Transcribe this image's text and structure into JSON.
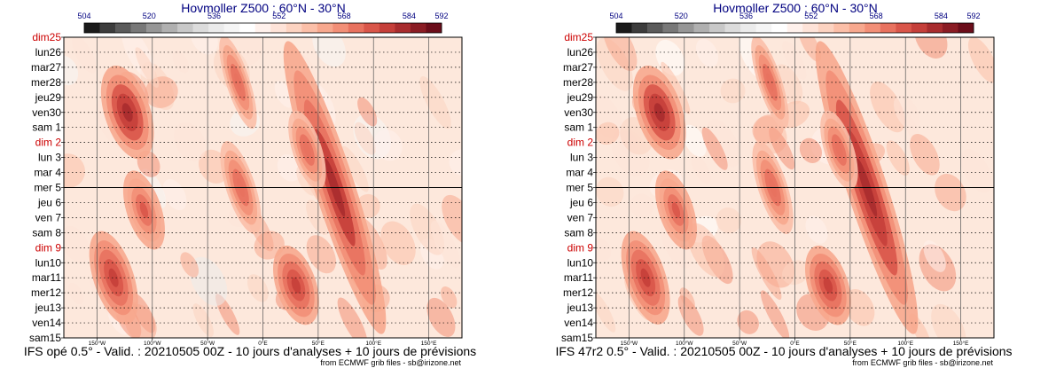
{
  "chart_data": [
    {
      "type": "heatmap",
      "title": "Hovmoller Z500 : 60°N - 30°N",
      "colorbar": {
        "tick_labels": [
          "504",
          "520",
          "536",
          "552",
          "568",
          "584",
          "592"
        ],
        "tick_values": [
          504,
          520,
          536,
          552,
          568,
          584,
          592
        ],
        "range": [
          504,
          592
        ],
        "colors": [
          "#1a1a1a",
          "#3c3c3c",
          "#5a5a5a",
          "#787878",
          "#969696",
          "#b0b0b0",
          "#c8c8c8",
          "#dcdcdc",
          "#ebebeb",
          "#f5f5f5",
          "#ffffff",
          "#fff1ec",
          "#fee3d8",
          "#fcd3c1",
          "#fbbfa8",
          "#f7a88e",
          "#f28f77",
          "#e8725f",
          "#d9564a",
          "#c53f3a",
          "#a82c2e",
          "#8a1c24",
          "#6b0d1a"
        ]
      },
      "y_labels": [
        {
          "text": "dim25",
          "sunday": true
        },
        {
          "text": "lun26",
          "sunday": false
        },
        {
          "text": "mar27",
          "sunday": false
        },
        {
          "text": "mer28",
          "sunday": false
        },
        {
          "text": "jeu29",
          "sunday": false
        },
        {
          "text": "ven30",
          "sunday": false
        },
        {
          "text": "sam 1",
          "sunday": false
        },
        {
          "text": "dim 2",
          "sunday": true
        },
        {
          "text": "lun 3",
          "sunday": false
        },
        {
          "text": "mar 4",
          "sunday": false
        },
        {
          "text": "mer 5",
          "sunday": false
        },
        {
          "text": "jeu 6",
          "sunday": false
        },
        {
          "text": "ven 7",
          "sunday": false
        },
        {
          "text": "sam 8",
          "sunday": false
        },
        {
          "text": "dim 9",
          "sunday": true
        },
        {
          "text": "lun10",
          "sunday": false
        },
        {
          "text": "mar11",
          "sunday": false
        },
        {
          "text": "mer12",
          "sunday": false
        },
        {
          "text": "jeu13",
          "sunday": false
        },
        {
          "text": "ven14",
          "sunday": false
        },
        {
          "text": "sam15",
          "sunday": false
        }
      ],
      "x_ticks": [
        {
          "label": "150°W",
          "lon": -150
        },
        {
          "label": "100°W",
          "lon": -100
        },
        {
          "label": "50°W",
          "lon": -50
        },
        {
          "label": "0°E",
          "lon": 0
        },
        {
          "label": "50°E",
          "lon": 50
        },
        {
          "label": "100°E",
          "lon": 100
        },
        {
          "label": "150°E",
          "lon": 150
        }
      ],
      "xlim": [
        -180,
        180
      ],
      "analysis_forecast_boundary": "mer 5",
      "sunday_color": "#cc0000",
      "anomaly_ridges": [
        {
          "lon_start": -140,
          "lon_end": -105,
          "day_start": 2,
          "day_end": 8,
          "peak": 583
        },
        {
          "lon_start": -150,
          "lon_end": -120,
          "day_start": 13,
          "day_end": 19,
          "peak": 578
        },
        {
          "lon_start": -120,
          "lon_end": -95,
          "day_start": 9,
          "day_end": 14,
          "peak": 575
        },
        {
          "lon_start": -30,
          "lon_end": -15,
          "day_start": 0,
          "day_end": 6,
          "peak": 572
        },
        {
          "lon_start": -30,
          "lon_end": -10,
          "day_start": 7,
          "day_end": 13,
          "peak": 572
        },
        {
          "lon_start": 15,
          "lon_end": 45,
          "day_start": 14,
          "day_end": 19,
          "peak": 580
        },
        {
          "lon_start": 50,
          "lon_end": 80,
          "day_start": 0,
          "day_end": 20,
          "peak": 582
        },
        {
          "lon_start": 30,
          "lon_end": 50,
          "day_start": 5,
          "day_end": 10,
          "peak": 572
        }
      ],
      "footer": "IFS opé 0.5° - Valid. : 20210505 00Z - 10 jours d'analyses + 10 jours de prévisions",
      "credit": "from ECMWF grib files - sb@irizone.net",
      "seed": 3
    },
    {
      "type": "heatmap",
      "title": "Hovmoller Z500 : 60°N - 30°N",
      "colorbar": {
        "tick_labels": [
          "504",
          "520",
          "536",
          "552",
          "568",
          "584",
          "592"
        ],
        "tick_values": [
          504,
          520,
          536,
          552,
          568,
          584,
          592
        ],
        "range": [
          504,
          592
        ],
        "colors": [
          "#1a1a1a",
          "#3c3c3c",
          "#5a5a5a",
          "#787878",
          "#969696",
          "#b0b0b0",
          "#c8c8c8",
          "#dcdcdc",
          "#ebebeb",
          "#f5f5f5",
          "#ffffff",
          "#fff1ec",
          "#fee3d8",
          "#fcd3c1",
          "#fbbfa8",
          "#f7a88e",
          "#f28f77",
          "#e8725f",
          "#d9564a",
          "#c53f3a",
          "#a82c2e",
          "#8a1c24",
          "#6b0d1a"
        ]
      },
      "y_labels": [
        {
          "text": "dim25",
          "sunday": true
        },
        {
          "text": "lun26",
          "sunday": false
        },
        {
          "text": "mar27",
          "sunday": false
        },
        {
          "text": "mer28",
          "sunday": false
        },
        {
          "text": "jeu29",
          "sunday": false
        },
        {
          "text": "ven30",
          "sunday": false
        },
        {
          "text": "sam 1",
          "sunday": false
        },
        {
          "text": "dim 2",
          "sunday": true
        },
        {
          "text": "lun 3",
          "sunday": false
        },
        {
          "text": "mar 4",
          "sunday": false
        },
        {
          "text": "mer 5",
          "sunday": false
        },
        {
          "text": "jeu 6",
          "sunday": false
        },
        {
          "text": "ven 7",
          "sunday": false
        },
        {
          "text": "sam 8",
          "sunday": false
        },
        {
          "text": "dim 9",
          "sunday": true
        },
        {
          "text": "lun10",
          "sunday": false
        },
        {
          "text": "mar11",
          "sunday": false
        },
        {
          "text": "mer12",
          "sunday": false
        },
        {
          "text": "jeu13",
          "sunday": false
        },
        {
          "text": "ven14",
          "sunday": false
        },
        {
          "text": "sam15",
          "sunday": false
        }
      ],
      "x_ticks": [
        {
          "label": "150°W",
          "lon": -150
        },
        {
          "label": "100°W",
          "lon": -100
        },
        {
          "label": "50°W",
          "lon": -50
        },
        {
          "label": "0°E",
          "lon": 0
        },
        {
          "label": "50°E",
          "lon": 50
        },
        {
          "label": "100°E",
          "lon": 100
        },
        {
          "label": "150°E",
          "lon": 150
        }
      ],
      "xlim": [
        -180,
        180
      ],
      "analysis_forecast_boundary": "mer 5",
      "sunday_color": "#cc0000",
      "anomaly_ridges": [
        {
          "lon_start": -140,
          "lon_end": -105,
          "day_start": 2,
          "day_end": 8,
          "peak": 583
        },
        {
          "lon_start": -150,
          "lon_end": -120,
          "day_start": 13,
          "day_end": 19,
          "peak": 578
        },
        {
          "lon_start": -120,
          "lon_end": -95,
          "day_start": 9,
          "day_end": 14,
          "peak": 575
        },
        {
          "lon_start": -30,
          "lon_end": -15,
          "day_start": 0,
          "day_end": 6,
          "peak": 572
        },
        {
          "lon_start": -30,
          "lon_end": -10,
          "day_start": 7,
          "day_end": 13,
          "peak": 572
        },
        {
          "lon_start": 15,
          "lon_end": 45,
          "day_start": 14,
          "day_end": 19,
          "peak": 580
        },
        {
          "lon_start": 50,
          "lon_end": 80,
          "day_start": 0,
          "day_end": 20,
          "peak": 584
        },
        {
          "lon_start": 30,
          "lon_end": 50,
          "day_start": 5,
          "day_end": 10,
          "peak": 572
        }
      ],
      "footer": "IFS 47r2 0.5° - Valid. : 20210505 00Z - 10 jours d'analyses + 10 jours de prévisions",
      "credit": "from ECMWF grib files - sb@irizone.net",
      "seed": 7
    }
  ]
}
